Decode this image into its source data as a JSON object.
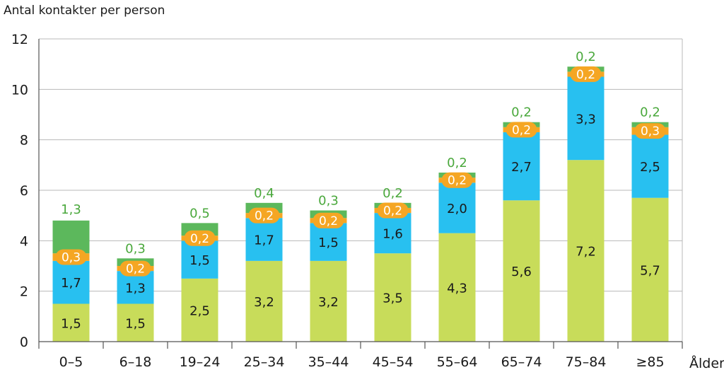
{
  "chart_data": {
    "type": "bar",
    "stacked": true,
    "ylabel": "Antal kontakter per person",
    "xlabel": "Ålder",
    "ylim": [
      0,
      12
    ],
    "yticks": [
      "0",
      "2",
      "4",
      "6",
      "8",
      "10",
      "12"
    ],
    "grid": true,
    "categories": [
      "0–5",
      "6–18",
      "19–24",
      "25–34",
      "35–44",
      "45–54",
      "55–64",
      "65–74",
      "75–84",
      "≥85"
    ],
    "series": [
      {
        "color": "#c8dc5a",
        "values": [
          1.5,
          1.5,
          2.5,
          3.2,
          3.2,
          3.5,
          4.3,
          5.6,
          7.2,
          5.7
        ],
        "labels": [
          "1,5",
          "1,5",
          "2,5",
          "3,2",
          "3,2",
          "3,5",
          "4,3",
          "5,6",
          "7,2",
          "5,7"
        ]
      },
      {
        "color": "#28c0f0",
        "values": [
          1.7,
          1.3,
          1.5,
          1.7,
          1.5,
          1.6,
          2.0,
          2.7,
          3.3,
          2.5
        ],
        "labels": [
          "1,7",
          "1,3",
          "1,5",
          "1,7",
          "1,5",
          "1,6",
          "2,0",
          "2,7",
          "3,3",
          "2,5"
        ]
      },
      {
        "color": "#f5a623",
        "values": [
          0.3,
          0.2,
          0.2,
          0.2,
          0.2,
          0.2,
          0.2,
          0.2,
          0.2,
          0.3
        ],
        "labels": [
          "0,3",
          "0,2",
          "0,2",
          "0,2",
          "0,2",
          "0,2",
          "0,2",
          "0,2",
          "0,2",
          "0,3"
        ]
      },
      {
        "color": "#5cb85c",
        "values": [
          1.3,
          0.3,
          0.5,
          0.4,
          0.3,
          0.2,
          0.2,
          0.2,
          0.2,
          0.2
        ],
        "labels": [
          "1,3",
          "0,3",
          "0,5",
          "0,4",
          "0,3",
          "0,2",
          "0,2",
          "0,2",
          "0,2",
          "0,2"
        ]
      }
    ]
  },
  "colors": {
    "grid": "#b8b8b8",
    "axis": "#555555",
    "top_label": "#4aa83c"
  }
}
